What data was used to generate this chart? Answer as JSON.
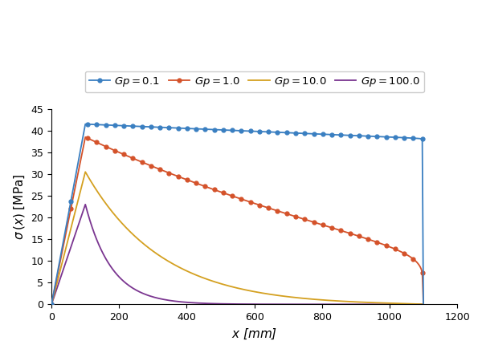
{
  "xlabel": "$x$ [mm]",
  "ylabel": "$\\sigma\\,(x)$ [MPa]",
  "xlim": [
    0,
    1200
  ],
  "ylim": [
    0,
    45
  ],
  "xticks": [
    0,
    200,
    400,
    600,
    800,
    1000,
    1200
  ],
  "yticks": [
    0,
    5,
    10,
    15,
    20,
    25,
    30,
    35,
    40,
    45
  ],
  "L": 1100,
  "x_peak": 100,
  "series": [
    {
      "label": "$Gp=0.1$",
      "color": "#3a7fc1",
      "peak": 41.5,
      "alpha_decay": 8e-05,
      "linear_weight": 1.0,
      "marker": "o",
      "markevery": 8,
      "markersize": 3.5,
      "linewidth": 1.3,
      "zorder": 4
    },
    {
      "label": "$Gp=1.0$",
      "color": "#d4522a",
      "peak": 38.5,
      "alpha_decay": 0.0008,
      "linear_weight": 0.85,
      "marker": "o",
      "markevery": 8,
      "markersize": 3.5,
      "linewidth": 1.3,
      "zorder": 3
    },
    {
      "label": "$Gp=10.0$",
      "color": "#d4a020",
      "peak": 30.5,
      "alpha_decay": 0.004,
      "linear_weight": 0.5,
      "marker": "None",
      "markevery": 1,
      "markersize": 0,
      "linewidth": 1.3,
      "zorder": 2
    },
    {
      "label": "$Gp=100.0$",
      "color": "#7a3590",
      "peak": 23.0,
      "alpha_decay": 0.012,
      "linear_weight": 0.1,
      "marker": "None",
      "markevery": 1,
      "markersize": 0,
      "linewidth": 1.3,
      "zorder": 1
    }
  ],
  "background_color": "#ffffff",
  "legend_ncol": 4,
  "figsize": [
    6.0,
    4.4
  ],
  "dpi": 100
}
